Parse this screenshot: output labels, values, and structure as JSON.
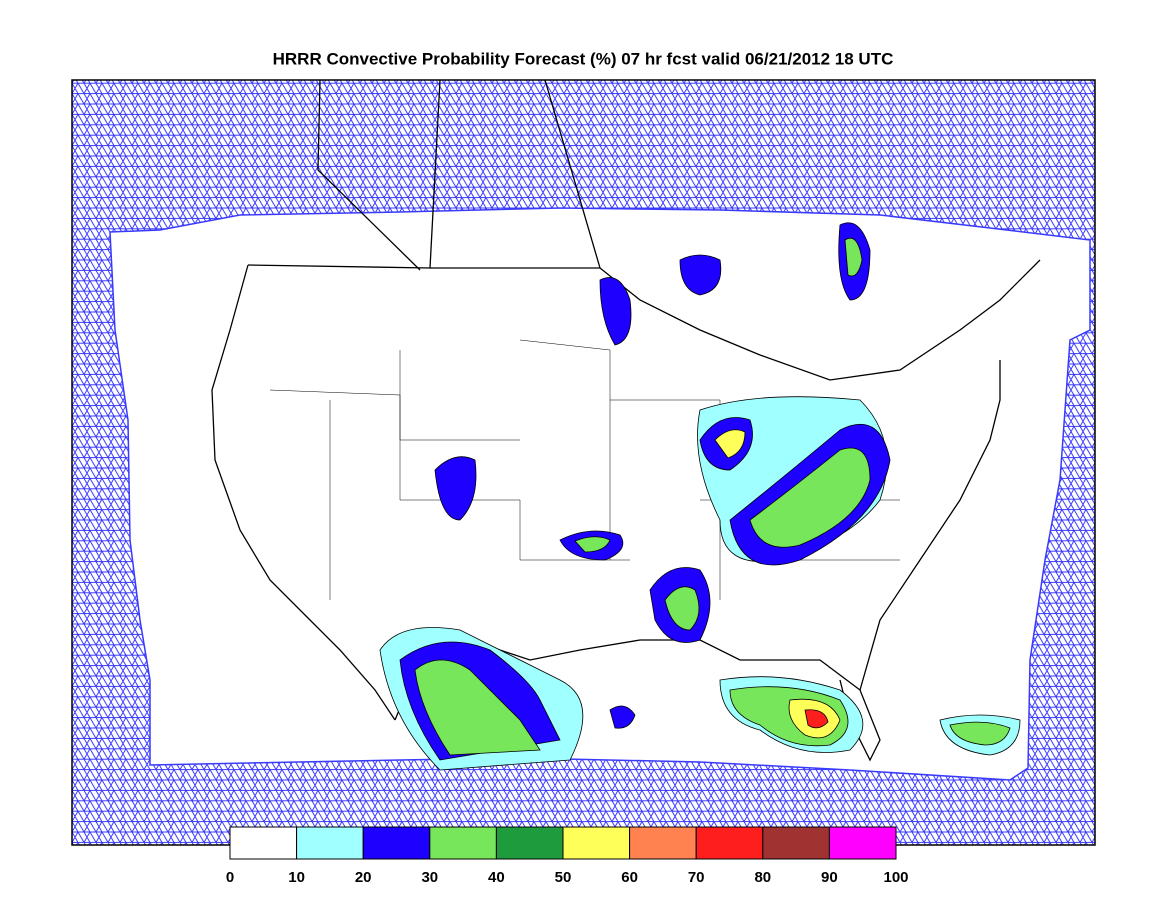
{
  "title": "HRRR Convective Probability Forecast (%) 07 hr fcst valid 06/21/2012 18 UTC",
  "legend": {
    "colors": [
      "#ffffff",
      "#a0ffff",
      "#1e00ff",
      "#78e65a",
      "#1e9b3c",
      "#ffff5a",
      "#ff8250",
      "#ff1e1e",
      "#a03232",
      "#ff00ff"
    ],
    "ticks": [
      0,
      10,
      20,
      30,
      40,
      50,
      60,
      70,
      80,
      90,
      100
    ]
  }
}
